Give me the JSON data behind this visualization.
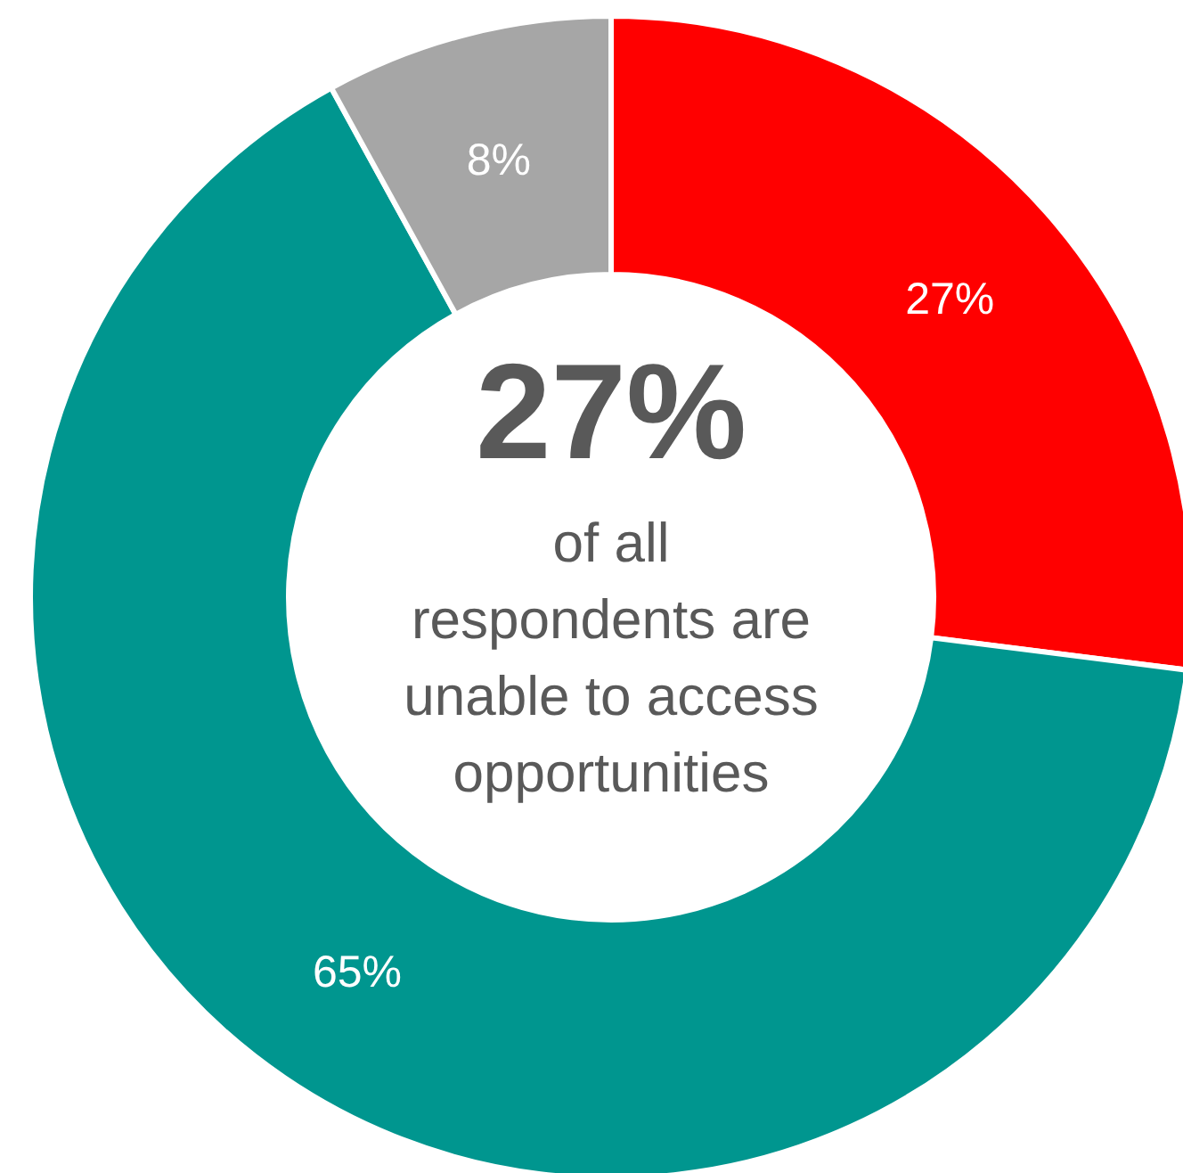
{
  "chart_data": {
    "type": "donut",
    "categories": [
      null,
      null,
      null
    ],
    "values": [
      27,
      65,
      8
    ],
    "colors": [
      "#ff0000",
      "#00968f",
      "#a6a6a6"
    ],
    "value_labels": [
      "27%",
      "65%",
      "8%"
    ],
    "annotations": [
      "27%",
      "of all respondents are unable to access opportunities"
    ]
  }
}
